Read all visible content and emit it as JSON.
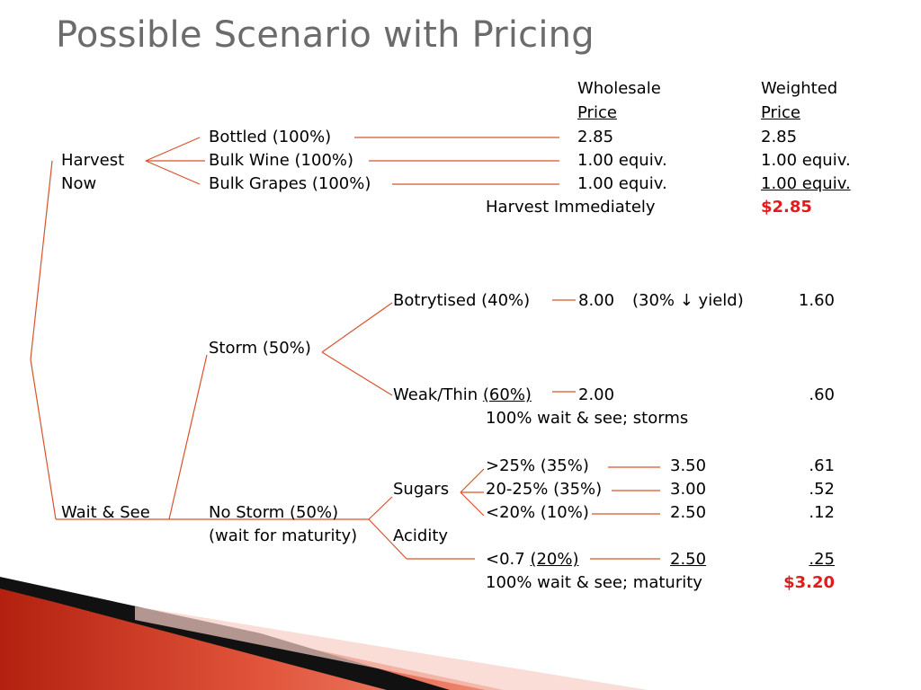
{
  "title": "Possible Scenario with Pricing",
  "colors": {
    "line": "#d9532b",
    "total": "#e11c1c",
    "title": "#6b6b6b"
  },
  "header": {
    "wholesale_1": "Wholesale",
    "wholesale_2": "Price",
    "weighted_1": "Weighted",
    "weighted_2": "Price"
  },
  "harvest": {
    "label_1": "Harvest",
    "label_2": "Now",
    "rows": [
      {
        "option": "Bottled (100%)",
        "wholesale": "2.85",
        "weighted": "2.85"
      },
      {
        "option": "Bulk Wine (100%)",
        "wholesale": "1.00 equiv.",
        "weighted": "1.00 equiv."
      },
      {
        "option": "Bulk Grapes (100%)",
        "wholesale": "1.00 equiv.",
        "weighted": "1.00 equiv."
      }
    ],
    "summary_label": "Harvest Immediately",
    "summary_total": "$2.85"
  },
  "wait": {
    "label": "Wait & See",
    "storm": {
      "label": "Storm (50%)",
      "botrytised_label": "Botrytised (40%)",
      "botrytised_price": "8.00",
      "botrytised_note": "(30% ↓ yield)",
      "botrytised_weighted": "1.60",
      "weak_label": "Weak/Thin",
      "weak_pct": "(60%)",
      "weak_price": "2.00",
      "weak_weighted": ".60",
      "summary": "100% wait & see; storms"
    },
    "nostorm": {
      "label": "No Storm (50%)",
      "sublabel": "(wait for maturity)",
      "sugars_label": "Sugars",
      "acidity_label": "Acidity",
      "rows": [
        {
          "label": ">25% (35%)",
          "price": "3.50",
          "weighted": ".61"
        },
        {
          "label": "20-25% (35%)",
          "price": "3.00",
          "weighted": ".52"
        },
        {
          "label": "<20% (10%)",
          "price": "2.50",
          "weighted": ".12"
        }
      ],
      "acid_row": {
        "label": "<0.7",
        "pct": "(20%)",
        "price": "2.50",
        "weighted": ".25"
      },
      "summary": "100% wait & see; maturity",
      "total": "$3.20"
    }
  }
}
